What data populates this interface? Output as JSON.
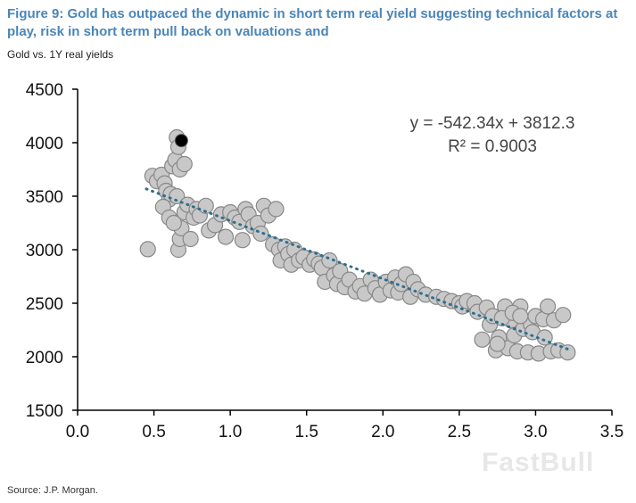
{
  "header": {
    "title": "Figure 9: Gold has outpaced the dynamic in short term real yield suggesting technical factors at play, risk in short term pull back on valuations and",
    "subtitle": "Gold vs. 1Y real yields"
  },
  "footer": {
    "source": "Source: J.P. Morgan."
  },
  "watermark": "FastBull",
  "chart_data": {
    "type": "scatter",
    "title": "",
    "xlabel": "",
    "ylabel": "",
    "xlim": [
      0.0,
      3.5
    ],
    "ylim": [
      1500,
      4500
    ],
    "x_ticks": [
      "0.0",
      "0.5",
      "1.0",
      "1.5",
      "2.0",
      "2.5",
      "3.0",
      "3.5"
    ],
    "y_ticks": [
      "1500",
      "2000",
      "2500",
      "3000",
      "3500",
      "4000",
      "4500"
    ],
    "grid": false,
    "annotation": {
      "equation": "y = -542.34x + 3812.3",
      "r_squared": "R² = 0.9003"
    },
    "trendline": {
      "slope": -542.34,
      "intercept": 3812.3,
      "x_range": [
        0.45,
        3.22
      ],
      "color": "#2e6f8e",
      "style": "dotted"
    },
    "colors": {
      "point_fill": "#c8c8c8",
      "point_stroke": "#888888",
      "highlight": "#000000"
    },
    "highlight_point": {
      "x": 0.68,
      "y": 4020
    },
    "series": [
      {
        "points": [
          [
            0.46,
            3005
          ],
          [
            0.49,
            3690
          ],
          [
            0.52,
            3640
          ],
          [
            0.55,
            3700
          ],
          [
            0.57,
            3620
          ],
          [
            0.58,
            3550
          ],
          [
            0.6,
            3470
          ],
          [
            0.61,
            3520
          ],
          [
            0.62,
            3780
          ],
          [
            0.64,
            3840
          ],
          [
            0.65,
            4050
          ],
          [
            0.66,
            3960
          ],
          [
            0.66,
            3000
          ],
          [
            0.67,
            3750
          ],
          [
            0.67,
            3100
          ],
          [
            0.68,
            3200
          ],
          [
            0.7,
            3800
          ],
          [
            0.7,
            3350
          ],
          [
            0.56,
            3400
          ],
          [
            0.6,
            3300
          ],
          [
            0.63,
            3250
          ],
          [
            0.65,
            3500
          ],
          [
            0.72,
            3420
          ],
          [
            0.74,
            3100
          ],
          [
            0.76,
            3300
          ],
          [
            0.78,
            3380
          ],
          [
            0.8,
            3320
          ],
          [
            0.84,
            3410
          ],
          [
            0.86,
            3180
          ],
          [
            0.9,
            3230
          ],
          [
            0.94,
            3330
          ],
          [
            0.97,
            3120
          ],
          [
            1.0,
            3350
          ],
          [
            1.03,
            3300
          ],
          [
            1.06,
            3260
          ],
          [
            1.08,
            3090
          ],
          [
            1.1,
            3380
          ],
          [
            1.12,
            3330
          ],
          [
            1.15,
            3220
          ],
          [
            1.18,
            3250
          ],
          [
            1.2,
            3150
          ],
          [
            1.22,
            3410
          ],
          [
            1.25,
            3320
          ],
          [
            1.28,
            3050
          ],
          [
            1.3,
            3380
          ],
          [
            1.32,
            3000
          ],
          [
            1.33,
            2900
          ],
          [
            1.36,
            3030
          ],
          [
            1.38,
            2960
          ],
          [
            1.4,
            2860
          ],
          [
            1.42,
            3000
          ],
          [
            1.45,
            2900
          ],
          [
            1.48,
            2930
          ],
          [
            1.52,
            2860
          ],
          [
            1.55,
            2910
          ],
          [
            1.58,
            2870
          ],
          [
            1.6,
            2830
          ],
          [
            1.62,
            2700
          ],
          [
            1.65,
            2900
          ],
          [
            1.68,
            2760
          ],
          [
            1.7,
            2680
          ],
          [
            1.72,
            2800
          ],
          [
            1.75,
            2650
          ],
          [
            1.78,
            2720
          ],
          [
            1.82,
            2610
          ],
          [
            1.85,
            2660
          ],
          [
            1.88,
            2590
          ],
          [
            1.92,
            2720
          ],
          [
            1.95,
            2640
          ],
          [
            1.98,
            2580
          ],
          [
            2.02,
            2700
          ],
          [
            2.05,
            2620
          ],
          [
            2.08,
            2740
          ],
          [
            2.1,
            2600
          ],
          [
            2.12,
            2680
          ],
          [
            2.15,
            2770
          ],
          [
            2.18,
            2560
          ],
          [
            2.2,
            2700
          ],
          [
            2.23,
            2630
          ],
          [
            2.28,
            2580
          ],
          [
            2.35,
            2560
          ],
          [
            2.4,
            2540
          ],
          [
            2.45,
            2520
          ],
          [
            2.5,
            2500
          ],
          [
            2.52,
            2470
          ],
          [
            2.55,
            2520
          ],
          [
            2.6,
            2500
          ],
          [
            2.62,
            2420
          ],
          [
            2.65,
            2160
          ],
          [
            2.68,
            2460
          ],
          [
            2.7,
            2300
          ],
          [
            2.72,
            2380
          ],
          [
            2.74,
            2060
          ],
          [
            2.76,
            2180
          ],
          [
            2.8,
            2470
          ],
          [
            2.82,
            2080
          ],
          [
            2.84,
            2340
          ],
          [
            2.86,
            2200
          ],
          [
            2.88,
            2050
          ],
          [
            2.9,
            2470
          ],
          [
            2.92,
            2260
          ],
          [
            2.95,
            2040
          ],
          [
            2.97,
            2300
          ],
          [
            3.0,
            2380
          ],
          [
            3.02,
            2030
          ],
          [
            3.05,
            2350
          ],
          [
            3.08,
            2470
          ],
          [
            3.1,
            2050
          ],
          [
            3.12,
            2340
          ],
          [
            3.15,
            2060
          ],
          [
            3.18,
            2390
          ],
          [
            3.21,
            2040
          ],
          [
            2.78,
            2360
          ],
          [
            2.85,
            2410
          ],
          [
            2.98,
            2230
          ],
          [
            3.06,
            2180
          ],
          [
            2.75,
            2120
          ],
          [
            2.9,
            2380
          ]
        ]
      }
    ]
  }
}
